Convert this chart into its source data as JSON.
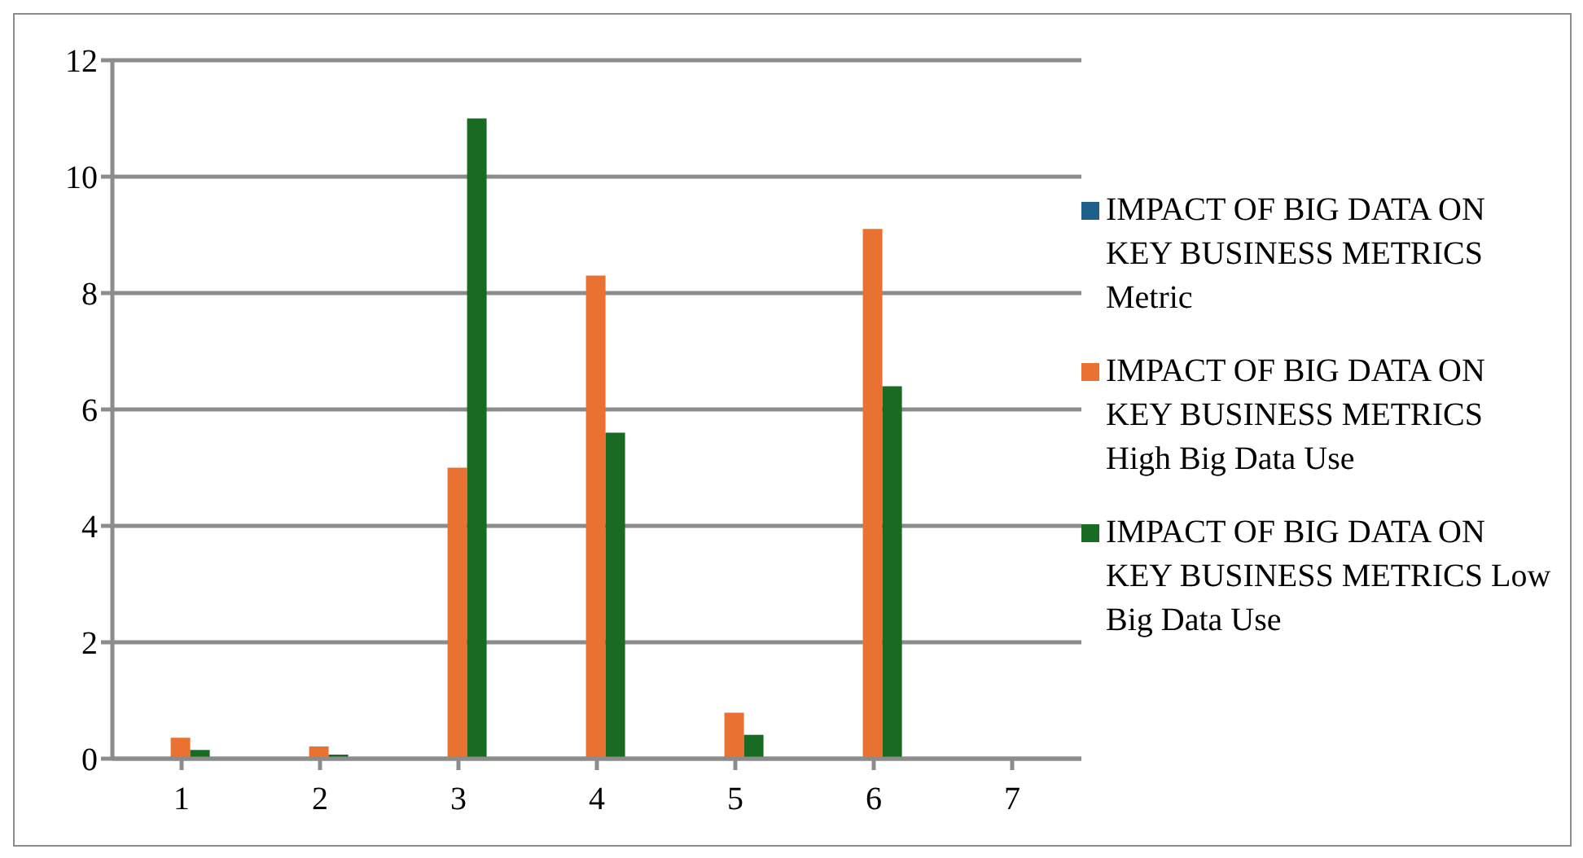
{
  "chart_data": {
    "type": "bar",
    "categories": [
      "1",
      "2",
      "3",
      "4",
      "5",
      "6",
      "7"
    ],
    "series": [
      {
        "name": "IMPACT OF BIG DATA ON KEY BUSINESS METRICS Metric",
        "color": "#1f5f8b",
        "values": [
          null,
          null,
          null,
          null,
          null,
          null,
          null
        ]
      },
      {
        "name": "IMPACT OF BIG DATA ON KEY BUSINESS METRICS High Big Data Use",
        "color": "#e97132",
        "values": [
          0.36,
          0.21,
          5.0,
          8.3,
          0.79,
          9.1,
          null
        ]
      },
      {
        "name": "IMPACT OF BIG DATA ON KEY BUSINESS METRICS Low Big Data Use",
        "color": "#196b24",
        "values": [
          0.15,
          0.07,
          11.0,
          5.6,
          0.41,
          6.4,
          null
        ]
      }
    ],
    "ylim": [
      0,
      12
    ],
    "yticks": [
      0,
      2,
      4,
      6,
      8,
      10,
      12
    ],
    "grid": "y",
    "legend": "right"
  }
}
